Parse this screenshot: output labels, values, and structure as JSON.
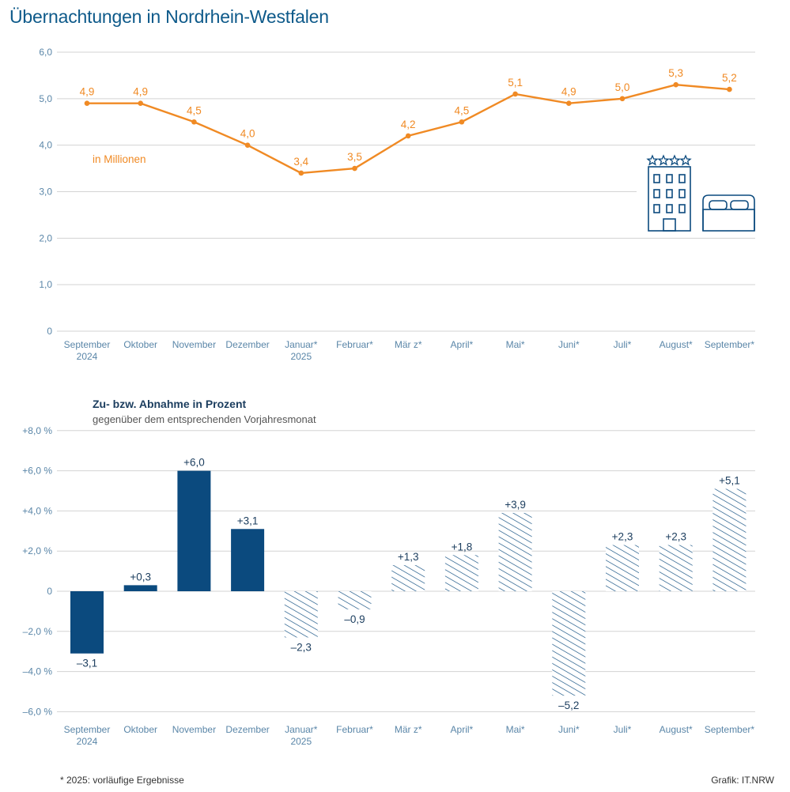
{
  "title": "Übernachtungen in Nordrhein-Westfalen",
  "footnote": "*  2025: vorläufige Ergebnisse",
  "credit": "Grafik: IT.NRW",
  "colors": {
    "line": "#f08a24",
    "bar": "#0b4a7e",
    "title": "#0e5a8a",
    "axis": "#5a86a8"
  },
  "icons": [
    "hotel-icon",
    "bed-icon",
    "star-icon"
  ],
  "chart_data": [
    {
      "type": "line",
      "unit_label": "in Millionen",
      "categories": [
        [
          "September",
          "2024"
        ],
        [
          "Oktober"
        ],
        [
          "November"
        ],
        [
          "Dezember"
        ],
        [
          "Januar*",
          "2025"
        ],
        [
          "Februar*"
        ],
        [
          "Mär z*"
        ],
        [
          "April*"
        ],
        [
          "Mai*"
        ],
        [
          "Juni*"
        ],
        [
          "Juli*"
        ],
        [
          "August*"
        ],
        [
          "September*"
        ]
      ],
      "values": [
        4.9,
        4.9,
        4.5,
        4.0,
        3.4,
        3.5,
        4.2,
        4.5,
        5.1,
        4.9,
        5.0,
        5.3,
        5.2
      ],
      "value_labels": [
        "4,9",
        "4,9",
        "4,5",
        "4,0",
        "3,4",
        "3,5",
        "4,2",
        "4,5",
        "5,1",
        "4,9",
        "5,0",
        "5,3",
        "5,2"
      ],
      "ylim": [
        0,
        6
      ],
      "yticks": [
        0,
        1,
        2,
        3,
        4,
        5,
        6
      ],
      "ytick_labels": [
        "0",
        "1,0",
        "2,0",
        "3,0",
        "4,0",
        "5,0",
        "6,0"
      ]
    },
    {
      "type": "bar",
      "title": "Zu- bzw. Abnahme in Prozent",
      "subtitle": "gegenüber dem entsprechenden Vorjahresmonat",
      "categories": [
        [
          "September",
          "2024"
        ],
        [
          "Oktober"
        ],
        [
          "November"
        ],
        [
          "Dezember"
        ],
        [
          "Januar*",
          "2025"
        ],
        [
          "Februar*"
        ],
        [
          "Mär z*"
        ],
        [
          "April*"
        ],
        [
          "Mai*"
        ],
        [
          "Juni*"
        ],
        [
          "Juli*"
        ],
        [
          "August*"
        ],
        [
          "September*"
        ]
      ],
      "values": [
        -3.1,
        0.3,
        6.0,
        3.1,
        -2.3,
        -0.9,
        1.3,
        1.8,
        3.9,
        -5.2,
        2.3,
        2.3,
        5.1
      ],
      "value_labels": [
        "–3,1",
        "+0,3",
        "+6,0",
        "+3,1",
        "–2,3",
        "–0,9",
        "+1,3",
        "+1,8",
        "+3,9",
        "–5,2",
        "+2,3",
        "+2,3",
        "+5,1"
      ],
      "provisional": [
        false,
        false,
        false,
        false,
        true,
        true,
        true,
        true,
        true,
        true,
        true,
        true,
        true
      ],
      "ylim": [
        -6,
        8
      ],
      "yticks": [
        -6,
        -4,
        -2,
        0,
        2,
        4,
        6,
        8
      ],
      "ytick_labels": [
        "–6,0 %",
        "–4,0 %",
        "–2,0 %",
        "0",
        "+2,0 %",
        "+4,0 %",
        "+6,0 %",
        "+8,0 %"
      ]
    }
  ]
}
